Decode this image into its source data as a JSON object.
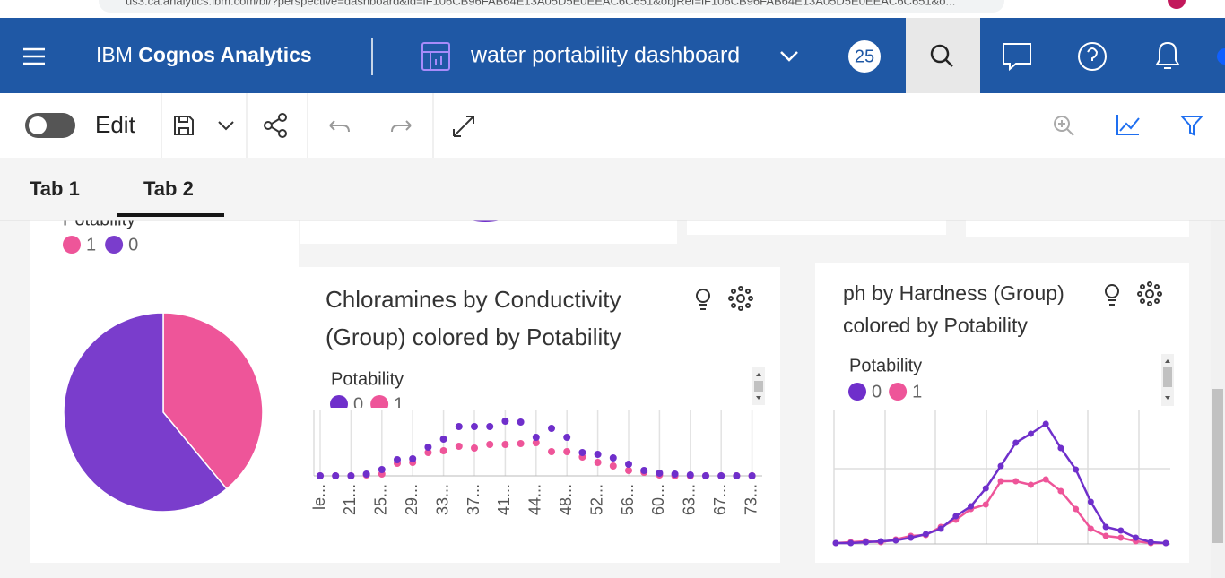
{
  "browser": {
    "url": "us3.ca.analytics.ibm.com/bi/?perspective=dashboard&id=iF106CB96FAB64E13A05D5E0EEAC6C651&objRef=iF106CB96FAB64E13A05D5E0EEAC6C651&o..."
  },
  "header": {
    "brand": "IBM",
    "product": "Cognos Analytics",
    "dashboard": "water portability dashboard",
    "badge": "25"
  },
  "toolbar": {
    "edit": "Edit"
  },
  "tabs": [
    "Tab 1",
    "Tab 2"
  ],
  "chart_data": [
    {
      "type": "pie",
      "legend_title": "Potability",
      "categories": [
        "1",
        "0"
      ],
      "values": [
        39,
        61
      ],
      "colors": [
        "#ee5599",
        "#7a3dcc"
      ]
    },
    {
      "type": "dot",
      "title": "Chloramines by Conductivity (Group) colored by Potability",
      "legend_title": "Potability",
      "categories": [
        "le...",
        null,
        "21...",
        null,
        "25...",
        null,
        "29...",
        null,
        "33...",
        null,
        "37...",
        null,
        "41...",
        null,
        "44...",
        null,
        "48...",
        null,
        "52...",
        null,
        "56...",
        null,
        "60...",
        null,
        "63...",
        null,
        "67...",
        null,
        "73..."
      ],
      "series": [
        {
          "name": "0",
          "color": "#6f2fcb",
          "values": [
            0,
            0,
            0,
            2,
            7,
            18,
            19,
            32,
            41,
            55,
            55,
            55,
            61,
            60,
            43,
            53,
            43,
            26,
            24,
            20,
            13,
            6,
            3,
            2,
            1,
            0,
            0,
            0,
            0
          ]
        },
        {
          "name": "1",
          "color": "#ee5599",
          "values": [
            0,
            0,
            0,
            1,
            2,
            14,
            15,
            26,
            28,
            33,
            31,
            35,
            35,
            36,
            37,
            27,
            27,
            21,
            15,
            11,
            6,
            4,
            1,
            0,
            0,
            0,
            0,
            0,
            0
          ]
        }
      ],
      "ylim": [
        0,
        73
      ]
    },
    {
      "type": "line",
      "title": "ph by Hardness (Group) colored by Potability",
      "legend_title": "Potability",
      "series": [
        {
          "name": "0",
          "color": "#6f2fcb",
          "values": [
            1,
            1,
            2,
            3,
            4,
            7,
            11,
            17,
            31,
            42,
            62,
            87,
            113,
            123,
            134,
            107,
            83,
            47,
            19,
            15,
            7,
            2,
            1
          ]
        },
        {
          "name": "1",
          "color": "#ee5599",
          "values": [
            1,
            2,
            3,
            2,
            5,
            9,
            10,
            19,
            27,
            39,
            44,
            70,
            70,
            66,
            72,
            59,
            39,
            17,
            9,
            7,
            3,
            1,
            1
          ]
        }
      ],
      "ylim": [
        0,
        150
      ]
    }
  ]
}
